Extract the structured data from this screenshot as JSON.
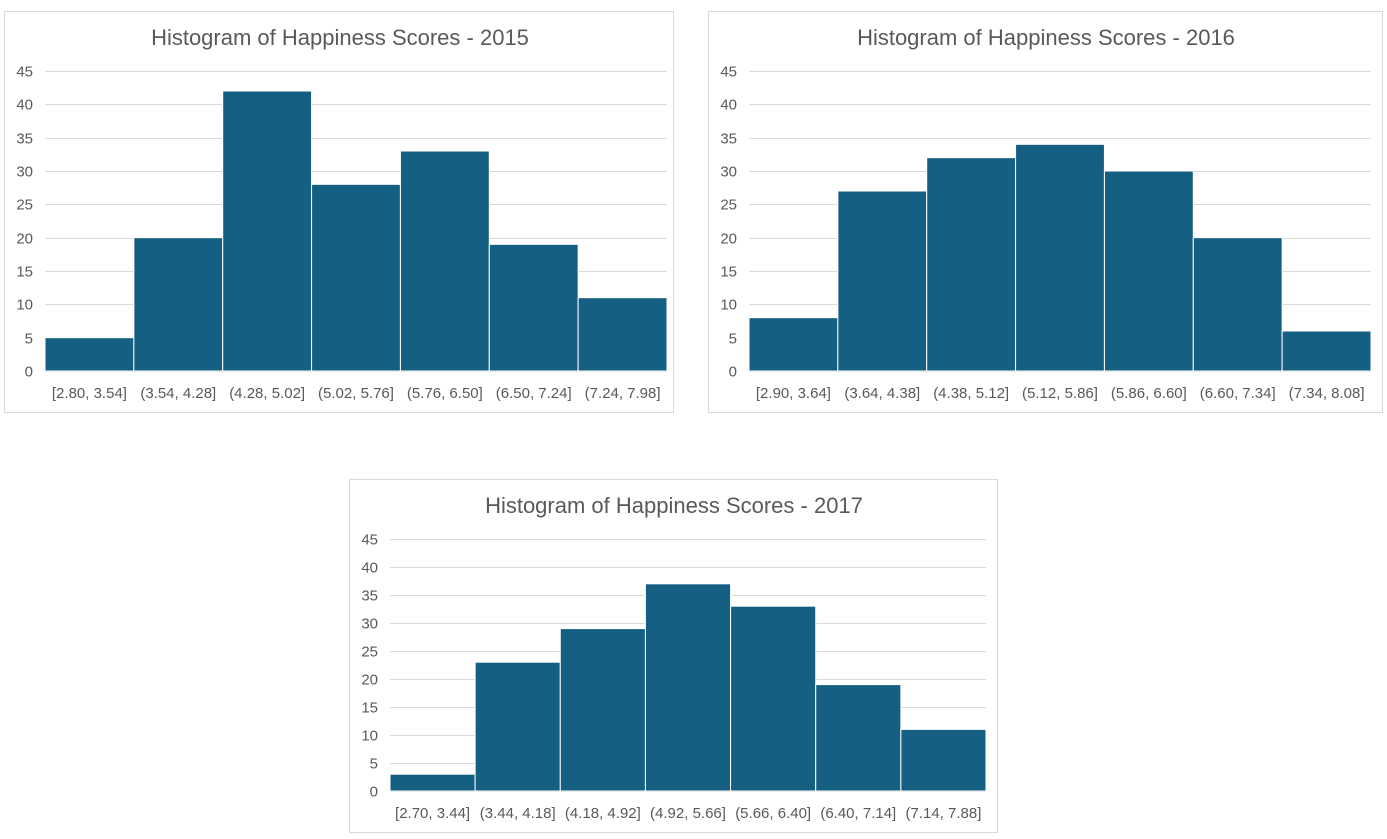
{
  "colors": {
    "bar": "#156082",
    "grid": "#d9d9d9",
    "text": "#595959",
    "border": "#d9d9d9",
    "background": "#ffffff"
  },
  "chart_data": [
    {
      "type": "bar",
      "title": "Histogram of Happiness Scores - 2015",
      "categories": [
        "[2.80, 3.54]",
        "(3.54, 4.28]",
        "(4.28, 5.02]",
        "(5.02, 5.76]",
        "(5.76, 6.50]",
        "(6.50, 7.24]",
        "(7.24, 7.98]"
      ],
      "values": [
        5,
        20,
        42,
        28,
        33,
        19,
        11
      ],
      "xlabel": "",
      "ylabel": "",
      "ylim": [
        0,
        45
      ],
      "yticks": [
        0,
        5,
        10,
        15,
        20,
        25,
        30,
        35,
        40,
        45
      ],
      "grid": true,
      "legend": "none"
    },
    {
      "type": "bar",
      "title": "Histogram of Happiness Scores - 2016",
      "categories": [
        "[2.90, 3.64]",
        "(3.64, 4.38]",
        "(4.38, 5.12]",
        "(5.12, 5.86]",
        "(5.86, 6.60]",
        "(6.60, 7.34]",
        "(7.34, 8.08]"
      ],
      "values": [
        8,
        27,
        32,
        34,
        30,
        20,
        6
      ],
      "xlabel": "",
      "ylabel": "",
      "ylim": [
        0,
        45
      ],
      "yticks": [
        0,
        5,
        10,
        15,
        20,
        25,
        30,
        35,
        40,
        45
      ],
      "grid": true,
      "legend": "none"
    },
    {
      "type": "bar",
      "title": "Histogram of Happiness Scores - 2017",
      "categories": [
        "[2.70, 3.44]",
        "(3.44, 4.18]",
        "(4.18, 4.92]",
        "(4.92, 5.66]",
        "(5.66, 6.40]",
        "(6.40, 7.14]",
        "(7.14, 7.88]"
      ],
      "values": [
        3,
        23,
        29,
        37,
        33,
        19,
        11
      ],
      "xlabel": "",
      "ylabel": "",
      "ylim": [
        0,
        45
      ],
      "yticks": [
        0,
        5,
        10,
        15,
        20,
        25,
        30,
        35,
        40,
        45
      ],
      "grid": true,
      "legend": "none"
    }
  ]
}
